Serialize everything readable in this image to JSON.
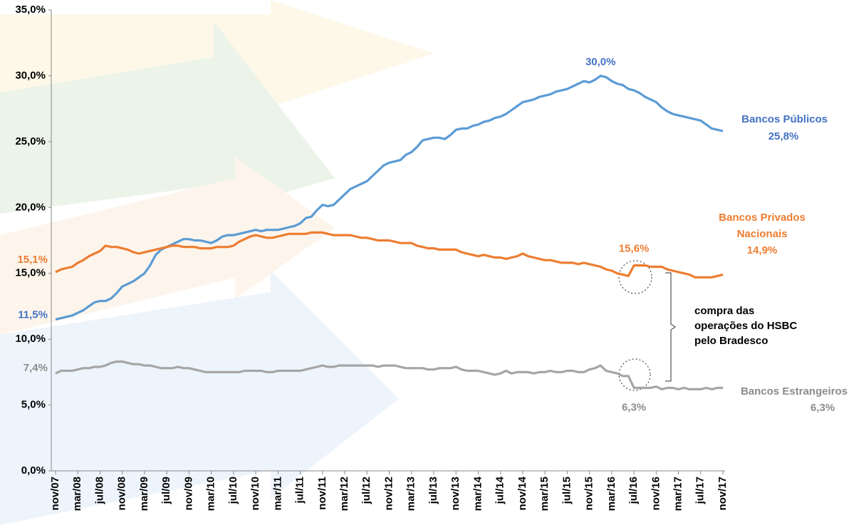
{
  "chart_data": {
    "type": "line",
    "categories": [
      "nov/07",
      null,
      null,
      null,
      "mar/08",
      null,
      null,
      null,
      "jul/08",
      null,
      null,
      null,
      "nov/08",
      null,
      null,
      null,
      "mar/09",
      null,
      null,
      null,
      "jul/09",
      null,
      null,
      null,
      "nov/09",
      null,
      null,
      null,
      "mar/10",
      null,
      null,
      null,
      "jul/10",
      null,
      null,
      null,
      "nov/10",
      null,
      null,
      null,
      "mar/11",
      null,
      null,
      null,
      "jul/11",
      null,
      null,
      null,
      "nov/11",
      null,
      null,
      null,
      "mar/12",
      null,
      null,
      null,
      "jul/12",
      null,
      null,
      null,
      "nov/12",
      null,
      null,
      null,
      "mar/13",
      null,
      null,
      null,
      "jul/13",
      null,
      null,
      null,
      "nov/13",
      null,
      null,
      null,
      "mar/14",
      null,
      null,
      null,
      "jul/14",
      null,
      null,
      null,
      "nov/14",
      null,
      null,
      null,
      "mar/15",
      null,
      null,
      null,
      "jul/15",
      null,
      null,
      null,
      "nov/15",
      null,
      null,
      null,
      "mar/16",
      null,
      null,
      null,
      "jul/16",
      null,
      null,
      null,
      "nov/16",
      null,
      null,
      null,
      "mar/17",
      null,
      null,
      null,
      "jul/17",
      null,
      null,
      null,
      "nov/17"
    ],
    "series": [
      {
        "name": "Bancos Públicos",
        "color": "#5b9bd5",
        "label_color": "#4472c4",
        "values": [
          11.5,
          11.6,
          11.7,
          11.8,
          12.0,
          12.2,
          12.5,
          12.8,
          12.9,
          12.9,
          13.1,
          13.5,
          14.0,
          14.2,
          14.4,
          14.7,
          15.0,
          15.6,
          16.4,
          16.8,
          17.0,
          17.2,
          17.4,
          17.6,
          17.6,
          17.5,
          17.5,
          17.4,
          17.3,
          17.5,
          17.8,
          17.9,
          17.9,
          18.0,
          18.1,
          18.2,
          18.3,
          18.2,
          18.3,
          18.3,
          18.3,
          18.4,
          18.5,
          18.6,
          18.8,
          19.2,
          19.3,
          19.8,
          20.2,
          20.1,
          20.2,
          20.6,
          21.0,
          21.4,
          21.6,
          21.8,
          22.0,
          22.4,
          22.8,
          23.2,
          23.4,
          23.5,
          23.6,
          24.0,
          24.2,
          24.6,
          25.1,
          25.2,
          25.3,
          25.3,
          25.2,
          25.5,
          25.9,
          26.0,
          26.0,
          26.2,
          26.3,
          26.5,
          26.6,
          26.8,
          26.9,
          27.1,
          27.4,
          27.7,
          28.0,
          28.1,
          28.2,
          28.4,
          28.5,
          28.6,
          28.8,
          28.9,
          29.0,
          29.2,
          29.4,
          29.6,
          29.5,
          29.7,
          30.0,
          29.9,
          29.6,
          29.4,
          29.3,
          29.0,
          28.9,
          28.7,
          28.4,
          28.2,
          28.0,
          27.6,
          27.3,
          27.1,
          27.0,
          26.9,
          26.8,
          26.7,
          26.6,
          26.3,
          26.0,
          25.9,
          25.8
        ],
        "value_labels": [
          "11,5%",
          null,
          null,
          null,
          null,
          null,
          null,
          null,
          null,
          null,
          null,
          null,
          null,
          null,
          null,
          null,
          null,
          null,
          null,
          null,
          null,
          null,
          null,
          null,
          null,
          null,
          null,
          null,
          null,
          null,
          null,
          null,
          null,
          null,
          null,
          null,
          null,
          null,
          null,
          null,
          null,
          null,
          null,
          null,
          null,
          null,
          null,
          null,
          null,
          null,
          null,
          null,
          null,
          null,
          null,
          null,
          null,
          null,
          null,
          null,
          null,
          null,
          null,
          null,
          null,
          null,
          null,
          null,
          null,
          null,
          null,
          null,
          null,
          null,
          null,
          null,
          null,
          null,
          null,
          null,
          null,
          null,
          null,
          null,
          null,
          null,
          null,
          null,
          null,
          null,
          null,
          null,
          null,
          null,
          null,
          null,
          null,
          null,
          "30,0%",
          null,
          null,
          null,
          null,
          null,
          null,
          null,
          null,
          null,
          null,
          null,
          null,
          null,
          null,
          null,
          null,
          null,
          null,
          null,
          null,
          null,
          "25,8%"
        ]
      },
      {
        "name": "Bancos Privados Nacionais",
        "color": "#ed7d31",
        "label_color": "#ed7d31",
        "values": [
          15.1,
          15.3,
          15.4,
          15.5,
          15.8,
          16.0,
          16.3,
          16.5,
          16.7,
          17.1,
          17.0,
          17.0,
          16.9,
          16.8,
          16.6,
          16.5,
          16.6,
          16.7,
          16.8,
          16.9,
          17.0,
          17.1,
          17.1,
          17.0,
          17.0,
          17.0,
          16.9,
          16.9,
          16.9,
          17.0,
          17.0,
          17.0,
          17.1,
          17.4,
          17.6,
          17.8,
          17.9,
          17.8,
          17.7,
          17.7,
          17.8,
          17.9,
          18.0,
          18.0,
          18.0,
          18.0,
          18.1,
          18.1,
          18.1,
          18.0,
          17.9,
          17.9,
          17.9,
          17.9,
          17.8,
          17.7,
          17.7,
          17.6,
          17.5,
          17.5,
          17.5,
          17.4,
          17.3,
          17.3,
          17.3,
          17.1,
          17.0,
          16.9,
          16.9,
          16.8,
          16.8,
          16.8,
          16.8,
          16.6,
          16.5,
          16.4,
          16.3,
          16.4,
          16.3,
          16.2,
          16.2,
          16.1,
          16.2,
          16.3,
          16.5,
          16.3,
          16.2,
          16.1,
          16.0,
          16.0,
          15.9,
          15.8,
          15.8,
          15.8,
          15.7,
          15.8,
          15.7,
          15.6,
          15.5,
          15.3,
          15.2,
          15.0,
          14.9,
          14.8,
          15.6,
          15.6,
          15.6,
          15.5,
          15.5,
          15.5,
          15.3,
          15.2,
          15.1,
          15.0,
          14.9,
          14.7,
          14.7,
          14.7,
          14.7,
          14.8,
          14.9
        ],
        "value_labels": [
          "15,1%",
          null,
          null,
          null,
          null,
          null,
          null,
          null,
          null,
          null,
          null,
          null,
          null,
          null,
          null,
          null,
          null,
          null,
          null,
          null,
          null,
          null,
          null,
          null,
          null,
          null,
          null,
          null,
          null,
          null,
          null,
          null,
          null,
          null,
          null,
          null,
          null,
          null,
          null,
          null,
          null,
          null,
          null,
          null,
          null,
          null,
          null,
          null,
          null,
          null,
          null,
          null,
          null,
          null,
          null,
          null,
          null,
          null,
          null,
          null,
          null,
          null,
          null,
          null,
          null,
          null,
          null,
          null,
          null,
          null,
          null,
          null,
          null,
          null,
          null,
          null,
          null,
          null,
          null,
          null,
          null,
          null,
          null,
          null,
          null,
          null,
          null,
          null,
          null,
          null,
          null,
          null,
          null,
          null,
          null,
          null,
          null,
          null,
          null,
          null,
          null,
          null,
          null,
          null,
          "15,6%",
          null,
          null,
          null,
          null,
          null,
          null,
          null,
          null,
          null,
          null,
          null,
          null,
          null,
          null,
          null,
          "14,9%"
        ]
      },
      {
        "name": "Bancos Estrangeiros",
        "color": "#a5a5a5",
        "label_color": "#8c8c8c",
        "values": [
          7.4,
          7.6,
          7.6,
          7.6,
          7.7,
          7.8,
          7.8,
          7.9,
          7.9,
          8.0,
          8.2,
          8.3,
          8.3,
          8.2,
          8.1,
          8.1,
          8.0,
          8.0,
          7.9,
          7.8,
          7.8,
          7.8,
          7.9,
          7.8,
          7.8,
          7.7,
          7.6,
          7.5,
          7.5,
          7.5,
          7.5,
          7.5,
          7.5,
          7.5,
          7.6,
          7.6,
          7.6,
          7.6,
          7.5,
          7.5,
          7.6,
          7.6,
          7.6,
          7.6,
          7.6,
          7.7,
          7.8,
          7.9,
          8.0,
          7.9,
          7.9,
          8.0,
          8.0,
          8.0,
          8.0,
          8.0,
          8.0,
          8.0,
          7.9,
          8.0,
          8.0,
          8.0,
          7.9,
          7.8,
          7.8,
          7.8,
          7.8,
          7.7,
          7.7,
          7.8,
          7.8,
          7.8,
          7.9,
          7.7,
          7.6,
          7.6,
          7.6,
          7.5,
          7.4,
          7.3,
          7.4,
          7.6,
          7.4,
          7.5,
          7.5,
          7.5,
          7.4,
          7.5,
          7.5,
          7.6,
          7.5,
          7.5,
          7.6,
          7.6,
          7.5,
          7.5,
          7.7,
          7.8,
          8.0,
          7.6,
          7.5,
          7.4,
          7.2,
          7.2,
          6.3,
          6.3,
          6.3,
          6.3,
          6.4,
          6.2,
          6.3,
          6.3,
          6.2,
          6.3,
          6.2,
          6.2,
          6.2,
          6.3,
          6.2,
          6.3,
          6.3
        ],
        "value_labels": [
          "7,4%",
          null,
          null,
          null,
          null,
          null,
          null,
          null,
          null,
          null,
          null,
          null,
          null,
          null,
          null,
          null,
          null,
          null,
          null,
          null,
          null,
          null,
          null,
          null,
          null,
          null,
          null,
          null,
          null,
          null,
          null,
          null,
          null,
          null,
          null,
          null,
          null,
          null,
          null,
          null,
          null,
          null,
          null,
          null,
          null,
          null,
          null,
          null,
          null,
          null,
          null,
          null,
          null,
          null,
          null,
          null,
          null,
          null,
          null,
          null,
          null,
          null,
          null,
          null,
          null,
          null,
          null,
          null,
          null,
          null,
          null,
          null,
          null,
          null,
          null,
          null,
          null,
          null,
          null,
          null,
          null,
          null,
          null,
          null,
          null,
          null,
          null,
          null,
          null,
          null,
          null,
          null,
          null,
          null,
          null,
          null,
          null,
          null,
          null,
          null,
          null,
          null,
          null,
          null,
          "6,3%",
          null,
          null,
          null,
          null,
          null,
          null,
          null,
          null,
          null,
          null,
          null,
          null,
          null,
          null,
          null,
          "6,3%"
        ]
      }
    ],
    "ylim": [
      0,
      35
    ],
    "yticks": [
      {
        "value": 0,
        "label": "0,0%"
      },
      {
        "value": 5,
        "label": "5,0%"
      },
      {
        "value": 10,
        "label": "10,0%"
      },
      {
        "value": 15,
        "label": "15,0%"
      },
      {
        "value": 20,
        "label": "20,0%"
      },
      {
        "value": 25,
        "label": "25,0%"
      },
      {
        "value": 30,
        "label": "30,0%"
      },
      {
        "value": 35,
        "label": "35,0%"
      }
    ],
    "grid": false,
    "annotation": [
      "compra das",
      "operações do HSBC",
      "pelo Bradesco"
    ]
  }
}
